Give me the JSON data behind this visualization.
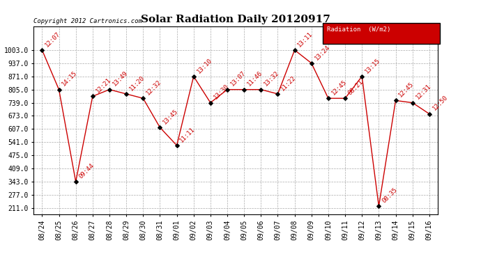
{
  "title": "Solar Radiation Daily 20120917",
  "copyright": "Copyright 2012 Cartronics.com",
  "legend_label": "Radiation  (W/m2)",
  "legend_bg": "#cc0000",
  "legend_text_color": "#ffffff",
  "background_color": "#ffffff",
  "grid_color": "#aaaaaa",
  "line_color": "#cc0000",
  "marker_color": "#000000",
  "dates": [
    "08/24",
    "08/25",
    "08/26",
    "08/27",
    "08/28",
    "08/29",
    "08/30",
    "08/31",
    "09/01",
    "09/02",
    "09/03",
    "09/04",
    "09/05",
    "09/06",
    "09/07",
    "09/08",
    "09/09",
    "09/10",
    "09/11",
    "09/12",
    "09/13",
    "09/14",
    "09/15",
    "09/16"
  ],
  "values": [
    1003,
    805,
    343,
    771,
    805,
    783,
    761,
    615,
    525,
    871,
    739,
    805,
    805,
    805,
    783,
    1003,
    937,
    761,
    761,
    871,
    220,
    750,
    739,
    683
  ],
  "labels": [
    "12:07",
    "14:15",
    "09:44",
    "12:21",
    "13:49",
    "11:20",
    "12:32",
    "13:45",
    "11:11",
    "13:10",
    "13:30",
    "13:07",
    "11:46",
    "13:32",
    "11:22",
    "13:11",
    "13:24",
    "12:45",
    "08:21",
    "13:15",
    "08:35",
    "12:45",
    "12:31",
    "12:50"
  ],
  "ylim_min": 211.0,
  "ylim_max": 1003.0,
  "yticks": [
    211.0,
    277.0,
    343.0,
    409.0,
    475.0,
    541.0,
    607.0,
    673.0,
    739.0,
    805.0,
    871.0,
    937.0,
    1003.0
  ],
  "title_fontsize": 11,
  "label_fontsize": 6.5,
  "tick_fontsize": 7,
  "copyright_fontsize": 6.5
}
